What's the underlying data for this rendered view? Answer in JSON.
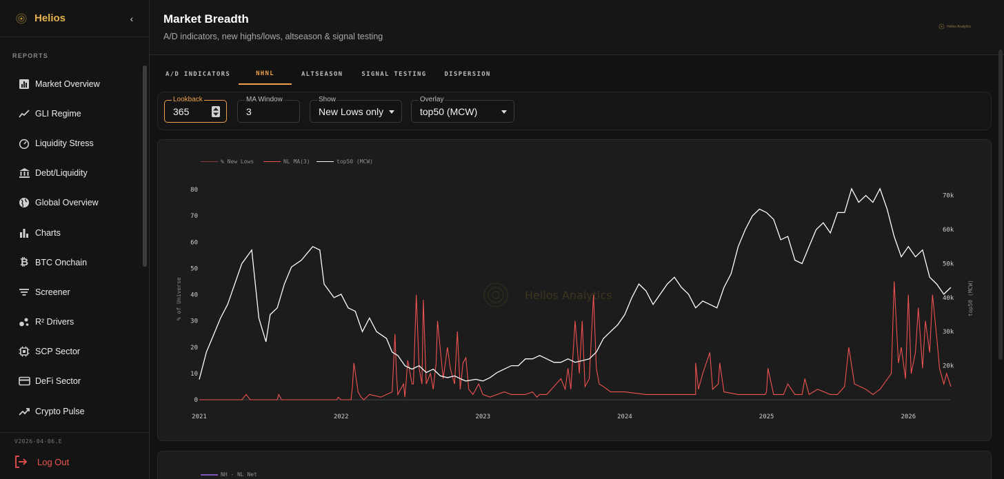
{
  "app": {
    "name": "Helios",
    "version": "V2026-04-06.E",
    "watermark": "Helios Analytics",
    "header_mark": "Helios Analytics"
  },
  "sidebar": {
    "section_label": "REPORTS",
    "items": [
      {
        "label": "Market Overview",
        "icon": "bar-chart-box-icon"
      },
      {
        "label": "GLI Regime",
        "icon": "trend-line-icon"
      },
      {
        "label": "Liquidity Stress",
        "icon": "gauge-icon"
      },
      {
        "label": "Debt/Liquidity",
        "icon": "bank-icon"
      },
      {
        "label": "Global Overview",
        "icon": "globe-icon"
      },
      {
        "label": "Charts",
        "icon": "bar-chart-icon"
      },
      {
        "label": "BTC Onchain",
        "icon": "bitcoin-icon"
      },
      {
        "label": "Screener",
        "icon": "filter-lines-icon"
      },
      {
        "label": "R² Drivers",
        "icon": "scatter-icon"
      },
      {
        "label": "SCP Sector",
        "icon": "chip-icon"
      },
      {
        "label": "DeFi Sector",
        "icon": "card-icon"
      },
      {
        "label": "Crypto Pulse",
        "icon": "trend-up-icon"
      }
    ],
    "logout_label": "Log Out"
  },
  "header": {
    "title": "Market Breadth",
    "subtitle": "A/D indicators, new highs/lows, altseason & signal testing"
  },
  "tabs": [
    {
      "label": "A/D INDICATORS",
      "active": false
    },
    {
      "label": "NHNL",
      "active": true
    },
    {
      "label": "ALTSEASON",
      "active": false
    },
    {
      "label": "SIGNAL TESTING",
      "active": false
    },
    {
      "label": "DISPERSION",
      "active": false
    }
  ],
  "controls": {
    "lookback": {
      "label": "Lookback",
      "value": "365"
    },
    "ma_window": {
      "label": "MA Window",
      "value": "3"
    },
    "show": {
      "label": "Show",
      "value": "New Lows only"
    },
    "overlay": {
      "label": "Overlay",
      "value": "top50 (MCW)"
    }
  },
  "colors": {
    "accent": "#f0a04b",
    "new_lows": "#ef5350",
    "overlay": "#ffffff",
    "net": "#7e57c2"
  },
  "chart_data": {
    "type": "line",
    "title": "",
    "legend": [
      "% New Lows",
      "NL MA(3)",
      "top50 (MCW)"
    ],
    "legend_position": "top-left",
    "ylabel": "% of Universe",
    "ylabel_right": "top50 (MCW)",
    "ylim": [
      0,
      80
    ],
    "ylim_right": [
      10000,
      75000
    ],
    "y_ticks": [
      "0",
      "10",
      "20",
      "30",
      "40",
      "50",
      "60",
      "70",
      "80"
    ],
    "y_right_ticks": [
      "20k",
      "30k",
      "40k",
      "50k",
      "60k",
      "70k"
    ],
    "x_ticks": [
      "2021",
      "2022",
      "2023",
      "2024",
      "2025",
      "2026"
    ],
    "xlim": [
      2021.0,
      2026.3
    ],
    "series": [
      {
        "name": "NL MA(3)",
        "axis": "left",
        "x": [
          2021.0,
          2021.15,
          2021.3,
          2021.33,
          2021.36,
          2021.55,
          2021.56,
          2021.58,
          2021.9,
          2021.97,
          2021.98,
          2022.0,
          2022.07,
          2022.08,
          2022.09,
          2022.12,
          2022.14,
          2022.16,
          2022.2,
          2022.28,
          2022.36,
          2022.38,
          2022.39,
          2022.4,
          2022.44,
          2022.45,
          2022.47,
          2022.5,
          2022.51,
          2022.53,
          2022.55,
          2022.57,
          2022.58,
          2022.6,
          2022.63,
          2022.65,
          2022.67,
          2022.68,
          2022.72,
          2022.75,
          2022.77,
          2022.8,
          2022.82,
          2022.84,
          2022.86,
          2022.88,
          2022.9,
          2022.93,
          2022.97,
          2023.0,
          2023.05,
          2023.1,
          2023.15,
          2023.2,
          2023.3,
          2023.35,
          2023.38,
          2023.4,
          2023.45,
          2023.5,
          2023.55,
          2023.58,
          2023.6,
          2023.62,
          2023.65,
          2023.68,
          2023.7,
          2023.72,
          2023.75,
          2023.78,
          2023.8,
          2023.82,
          2023.85,
          2023.9,
          2024.0,
          2024.15,
          2024.3,
          2024.5,
          2024.5,
          2024.52,
          2024.55,
          2024.6,
          2024.62,
          2024.66,
          2024.67,
          2024.7,
          2024.8,
          2024.9,
          2024.99,
          2025.0,
          2025.01,
          2025.05,
          2025.1,
          2025.12,
          2025.15,
          2025.2,
          2025.25,
          2025.27,
          2025.3,
          2025.36,
          2025.45,
          2025.5,
          2025.55,
          2025.58,
          2025.62,
          2025.7,
          2025.75,
          2025.8,
          2025.88,
          2025.9,
          2025.93,
          2025.95,
          2025.98,
          2026.0,
          2026.02,
          2026.05,
          2026.07,
          2026.1,
          2026.12,
          2026.15,
          2026.17,
          2026.2,
          2026.22,
          2026.25,
          2026.27,
          2026.3
        ],
        "values": [
          0,
          0,
          0,
          2,
          0,
          0,
          2,
          0,
          0,
          0,
          1,
          0,
          0,
          5,
          14,
          3,
          1,
          0,
          2,
          1,
          3,
          25,
          10,
          2,
          6,
          1,
          15,
          6,
          6,
          40,
          12,
          6,
          38,
          6,
          10,
          4,
          14,
          30,
          8,
          20,
          12,
          6,
          26,
          4,
          14,
          16,
          4,
          2,
          6,
          2,
          1,
          2,
          3,
          2,
          2,
          3,
          1,
          2,
          2,
          5,
          8,
          4,
          12,
          4,
          30,
          10,
          30,
          5,
          8,
          40,
          12,
          6,
          5,
          3,
          3,
          2,
          2,
          2,
          14,
          4,
          10,
          18,
          4,
          6,
          14,
          3,
          2,
          2,
          2,
          3,
          12,
          2,
          2,
          2,
          6,
          2,
          2,
          8,
          2,
          4,
          2,
          2,
          5,
          20,
          6,
          4,
          2,
          4,
          10,
          45,
          14,
          20,
          8,
          40,
          10,
          18,
          35,
          12,
          30,
          18,
          40,
          24,
          12,
          6,
          10,
          5
        ]
      },
      {
        "name": "top50 (MCW)",
        "axis": "right",
        "x": [
          2021.0,
          2021.05,
          2021.1,
          2021.15,
          2021.2,
          2021.3,
          2021.37,
          2021.42,
          2021.47,
          2021.5,
          2021.55,
          2021.6,
          2021.65,
          2021.72,
          2021.8,
          2021.85,
          2021.88,
          2021.95,
          2022.0,
          2022.05,
          2022.1,
          2022.15,
          2022.2,
          2022.25,
          2022.32,
          2022.36,
          2022.4,
          2022.45,
          2022.5,
          2022.55,
          2022.6,
          2022.65,
          2022.7,
          2022.75,
          2022.8,
          2022.85,
          2022.88,
          2022.95,
          2023.0,
          2023.05,
          2023.1,
          2023.15,
          2023.2,
          2023.25,
          2023.3,
          2023.35,
          2023.4,
          2023.45,
          2023.5,
          2023.55,
          2023.6,
          2023.65,
          2023.7,
          2023.75,
          2023.8,
          2023.85,
          2023.9,
          2023.95,
          2024.0,
          2024.05,
          2024.1,
          2024.15,
          2024.2,
          2024.25,
          2024.3,
          2024.35,
          2024.4,
          2024.45,
          2024.5,
          2024.55,
          2024.6,
          2024.65,
          2024.7,
          2024.75,
          2024.8,
          2024.85,
          2024.9,
          2024.95,
          2025.0,
          2025.05,
          2025.1,
          2025.15,
          2025.2,
          2025.25,
          2025.3,
          2025.35,
          2025.4,
          2025.45,
          2025.5,
          2025.55,
          2025.6,
          2025.65,
          2025.7,
          2025.75,
          2025.8,
          2025.85,
          2025.9,
          2025.95,
          2026.0,
          2026.05,
          2026.1,
          2026.15,
          2026.2,
          2026.25,
          2026.3
        ],
        "values": [
          16000,
          24000,
          29000,
          34000,
          38000,
          50000,
          54000,
          34000,
          27000,
          35000,
          37000,
          44000,
          49000,
          51000,
          55000,
          54000,
          44000,
          40000,
          41000,
          37000,
          36000,
          30000,
          34000,
          30000,
          28000,
          24000,
          23000,
          20000,
          19000,
          20000,
          18000,
          19000,
          17000,
          16500,
          17000,
          16000,
          15500,
          16000,
          15500,
          16500,
          18000,
          19000,
          20000,
          20000,
          22000,
          22000,
          23000,
          22000,
          21000,
          21000,
          22000,
          21000,
          21500,
          22000,
          24000,
          28000,
          30000,
          32000,
          35000,
          40000,
          44000,
          42000,
          38000,
          41000,
          44000,
          46000,
          43000,
          41000,
          37000,
          39000,
          38000,
          37000,
          43000,
          47000,
          55000,
          60000,
          64000,
          66000,
          65000,
          63000,
          57000,
          58000,
          51000,
          50000,
          55000,
          60000,
          62000,
          59000,
          65000,
          65000,
          72000,
          68000,
          70000,
          68000,
          72000,
          66000,
          58000,
          52000,
          55000,
          52000,
          54000,
          46000,
          44000,
          41000,
          43000
        ]
      }
    ]
  },
  "second_chart": {
    "legend": [
      "NH - NL Net"
    ]
  }
}
